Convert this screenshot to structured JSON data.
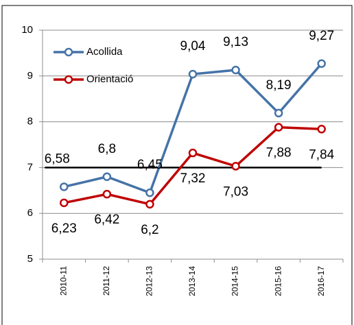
{
  "chart_data": {
    "type": "line",
    "categories": [
      "2010-11",
      "2011-12",
      "2012-13",
      "2013-14",
      "2014-15",
      "2015-16",
      "2016-17"
    ],
    "series": [
      {
        "name": "Acollida",
        "color": "#4573a7",
        "values": [
          6.58,
          6.8,
          6.45,
          9.04,
          9.13,
          8.19,
          9.27
        ],
        "value_labels": [
          "6,58",
          "6,8",
          "6,45",
          "9,04",
          "9,13",
          "8,19",
          "9,27"
        ]
      },
      {
        "name": "Orientació",
        "color": "#c00000",
        "values": [
          6.23,
          6.42,
          6.2,
          7.32,
          7.03,
          7.88,
          7.84
        ],
        "value_labels": [
          "6,23",
          "6,42",
          "6,2",
          "7,32",
          "7,03",
          "7,88",
          "7,84"
        ]
      }
    ],
    "reference_line": 7,
    "ylim": [
      5,
      10
    ],
    "yticks": [
      5,
      6,
      7,
      8,
      9,
      10
    ],
    "grid": true,
    "legend": "top-left"
  }
}
